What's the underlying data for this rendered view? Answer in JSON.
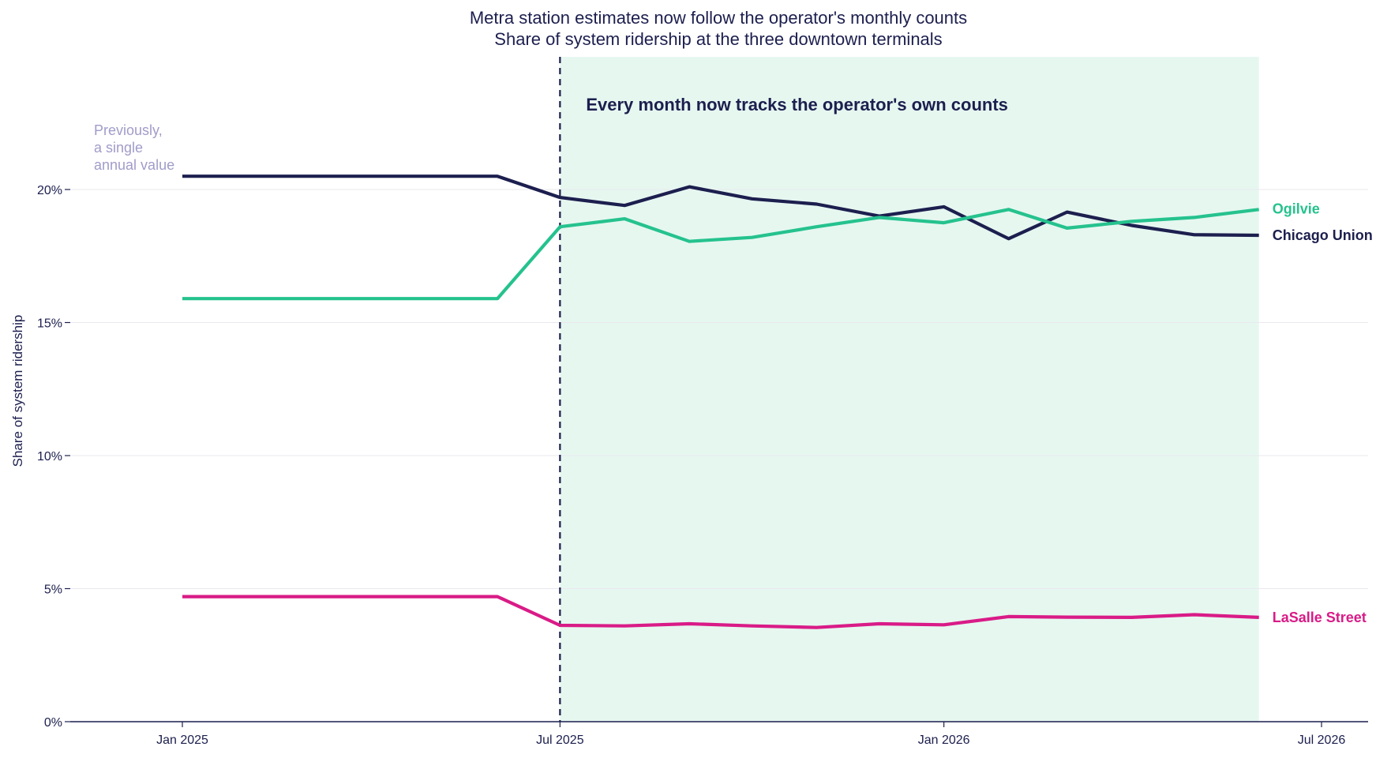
{
  "chart_data": {
    "type": "line",
    "title": "Metra station estimates now follow the operator's monthly counts",
    "subtitle": "Share of system ridership at the three downtown terminals",
    "ylabel": "Share of system ridership",
    "xlabel": "",
    "ylim": [
      0,
      0.2
    ],
    "ytick_values": [
      0,
      0.05,
      0.1,
      0.15,
      0.2
    ],
    "ytick_labels": [
      "0%",
      "5%",
      "10%",
      "15%",
      "20%"
    ],
    "xtick_values": [
      "2025-01-01",
      "2025-07-01",
      "2026-01-01",
      "2026-07-01"
    ],
    "xtick_labels": [
      "Jan 2025",
      "Jul 2025",
      "Jan 2026",
      "Jul 2026"
    ],
    "grid": "horizontal",
    "x": [
      "2025-01-01",
      "2025-02-01",
      "2025-03-01",
      "2025-04-01",
      "2025-05-01",
      "2025-06-01",
      "2025-07-01",
      "2025-08-01",
      "2025-09-01",
      "2025-10-01",
      "2025-11-01",
      "2025-12-01",
      "2026-01-01",
      "2026-02-01",
      "2026-03-01",
      "2026-04-01",
      "2026-05-01",
      "2026-06-01"
    ],
    "series": [
      {
        "name": "Chicago Union",
        "color": "#1c1f4e",
        "values": [
          0.205,
          0.205,
          0.205,
          0.205,
          0.205,
          0.205,
          0.197,
          0.194,
          0.201,
          0.1965,
          0.1945,
          0.19,
          0.1935,
          0.1815,
          0.1915,
          0.1865,
          0.183,
          0.1828
        ]
      },
      {
        "name": "Ogilvie",
        "color": "#25c28e",
        "values": [
          0.159,
          0.159,
          0.159,
          0.159,
          0.159,
          0.159,
          0.186,
          0.189,
          0.1805,
          0.182,
          0.186,
          0.1895,
          0.1875,
          0.1925,
          0.1855,
          0.188,
          0.1895,
          0.1925
        ]
      },
      {
        "name": "LaSalle Street",
        "color": "#d91b87",
        "values": [
          0.047,
          0.047,
          0.047,
          0.047,
          0.047,
          0.047,
          0.0362,
          0.036,
          0.0368,
          0.036,
          0.0354,
          0.0368,
          0.0364,
          0.0395,
          0.0393,
          0.0392,
          0.0402,
          0.0392
        ]
      }
    ],
    "highlight_region": {
      "start": "2025-07-01",
      "end": "2026-06-01",
      "color": "#e6f7f0"
    },
    "vertical_marker": {
      "x": "2025-07-01",
      "style": "dashed"
    },
    "annotations": {
      "highlight_text": "Every month now tracks the operator's own counts",
      "previous_text": [
        "Previously,",
        "a single",
        "annual value"
      ],
      "previous_color": "#a09cc9"
    }
  }
}
